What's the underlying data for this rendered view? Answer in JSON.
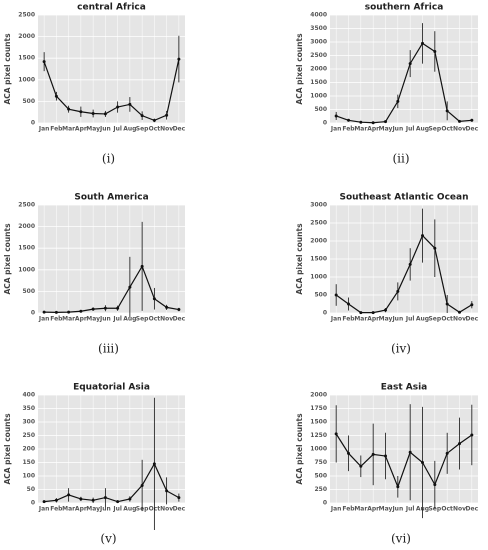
{
  "chart_data": [
    {
      "type": "line",
      "title": "central Africa",
      "caption": "(i)",
      "y_label": "ACA pixel counts",
      "categories": [
        "Jan",
        "Feb",
        "Mar",
        "Apr",
        "May",
        "Jun",
        "Jul",
        "Aug",
        "Sep",
        "Oct",
        "Nov",
        "Dec"
      ],
      "values": [
        1420,
        620,
        320,
        260,
        220,
        210,
        370,
        430,
        170,
        60,
        180,
        1480
      ],
      "errors": [
        220,
        100,
        80,
        120,
        90,
        70,
        130,
        170,
        100,
        40,
        100,
        540
      ],
      "color": "#111111",
      "ylim": [
        0,
        2500
      ],
      "yticks": [
        0,
        500,
        1000,
        1500,
        2000,
        2500
      ],
      "grid": true
    },
    {
      "type": "line",
      "title": "southern Africa",
      "caption": "(ii)",
      "y_label": "ACA pixel counts",
      "categories": [
        "Jan",
        "Feb",
        "Mar",
        "Apr",
        "May",
        "Jun",
        "Jul",
        "Aug",
        "Sep",
        "Oct",
        "Nov",
        "Dec"
      ],
      "values": [
        260,
        100,
        30,
        10,
        50,
        800,
        2200,
        2950,
        2650,
        450,
        60,
        100
      ],
      "errors": [
        150,
        50,
        20,
        10,
        30,
        250,
        500,
        750,
        750,
        350,
        40,
        50
      ],
      "color": "#111111",
      "ylim": [
        0,
        4000
      ],
      "yticks": [
        0,
        500,
        1000,
        1500,
        2000,
        2500,
        3000,
        3500,
        4000
      ],
      "grid": true
    },
    {
      "type": "line",
      "title": "South America",
      "caption": "(iii)",
      "y_label": "ACA pixel counts",
      "categories": [
        "Jan",
        "Feb",
        "Mar",
        "Apr",
        "May",
        "Jun",
        "Jul",
        "Aug",
        "Sep",
        "Oct",
        "Nov",
        "Dec"
      ],
      "values": [
        20,
        15,
        20,
        40,
        90,
        110,
        110,
        600,
        1080,
        330,
        130,
        80
      ],
      "errors": [
        10,
        10,
        10,
        20,
        40,
        70,
        60,
        700,
        1030,
        250,
        60,
        40
      ],
      "color": "#111111",
      "ylim": [
        0,
        2500
      ],
      "yticks": [
        0,
        500,
        1000,
        1500,
        2000,
        2500
      ],
      "grid": true
    },
    {
      "type": "line",
      "title": "Southeast Atlantic Ocean",
      "caption": "(iv)",
      "y_label": "ACA pixel counts",
      "categories": [
        "Jan",
        "Feb",
        "Mar",
        "Apr",
        "May",
        "Jun",
        "Jul",
        "Aug",
        "Sep",
        "Oct",
        "Nov",
        "Dec"
      ],
      "values": [
        500,
        250,
        10,
        10,
        80,
        600,
        1350,
        2150,
        1800,
        250,
        20,
        230
      ],
      "errors": [
        300,
        180,
        10,
        10,
        60,
        250,
        450,
        750,
        800,
        250,
        20,
        100
      ],
      "color": "#111111",
      "ylim": [
        0,
        3000
      ],
      "yticks": [
        0,
        500,
        1000,
        1500,
        2000,
        2500,
        3000
      ],
      "grid": true
    },
    {
      "type": "line",
      "title": "Equatorial Asia",
      "caption": "(v)",
      "y_label": "ACA pixel counts",
      "categories": [
        "Jan",
        "Feb",
        "Mar",
        "Apr",
        "May",
        "Jun",
        "Jul",
        "Aug",
        "Sep",
        "Oct",
        "Nov",
        "Dec"
      ],
      "values": [
        5,
        10,
        30,
        15,
        10,
        20,
        5,
        15,
        65,
        145,
        45,
        20
      ],
      "errors": [
        5,
        8,
        25,
        8,
        10,
        35,
        5,
        10,
        95,
        245,
        50,
        15
      ],
      "color": "#111111",
      "ylim": [
        0,
        400
      ],
      "yticks": [
        0,
        50,
        100,
        150,
        200,
        250,
        300,
        350,
        400
      ],
      "grid": true
    },
    {
      "type": "line",
      "title": "East Asia",
      "caption": "(vi)",
      "y_label": "ACA pixel counts",
      "categories": [
        "Jan",
        "Feb",
        "Mar",
        "Apr",
        "May",
        "Jun",
        "Jul",
        "Aug",
        "Sep",
        "Oct",
        "Nov",
        "Dec"
      ],
      "values": [
        1280,
        920,
        680,
        900,
        870,
        300,
        940,
        750,
        340,
        920,
        1100,
        1260
      ],
      "errors": [
        530,
        330,
        200,
        570,
        430,
        200,
        890,
        1030,
        440,
        380,
        480,
        560
      ],
      "color": "#111111",
      "ylim": [
        0,
        2000
      ],
      "yticks": [
        0,
        250,
        500,
        750,
        1000,
        1250,
        1500,
        1750,
        2000
      ],
      "grid": true
    }
  ]
}
